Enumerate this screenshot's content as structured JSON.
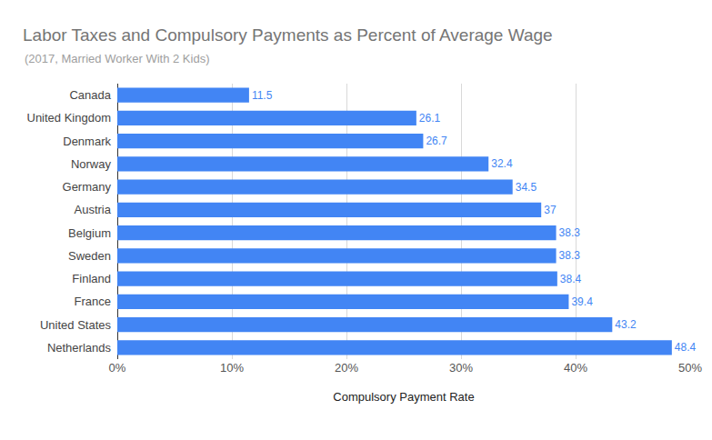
{
  "chart_data": {
    "type": "bar",
    "orientation": "horizontal",
    "title": "Labor Taxes and Compulsory Payments as Percent of Average Wage",
    "subtitle": "(2017, Married Worker With 2 Kids)",
    "x_label": "Compulsory Payment Rate",
    "categories": [
      "Canada",
      "United Kingdom",
      "Denmark",
      "Norway",
      "Germany",
      "Austria",
      "Belgium",
      "Sweden",
      "Finland",
      "France",
      "United States",
      "Netherlands"
    ],
    "values": [
      11.5,
      26.1,
      26.7,
      32.4,
      34.5,
      37,
      38.3,
      38.3,
      38.4,
      39.4,
      43.2,
      48.4
    ],
    "color": "#4285f4",
    "xlim": [
      0,
      50
    ],
    "xticks": [
      {
        "value": 0,
        "label": "0%"
      },
      {
        "value": 10,
        "label": "10%"
      },
      {
        "value": 20,
        "label": "20%"
      },
      {
        "value": 30,
        "label": "30%"
      },
      {
        "value": 40,
        "label": "40%"
      },
      {
        "value": 50,
        "label": "50%"
      }
    ],
    "grid": true,
    "data_labels": true
  }
}
